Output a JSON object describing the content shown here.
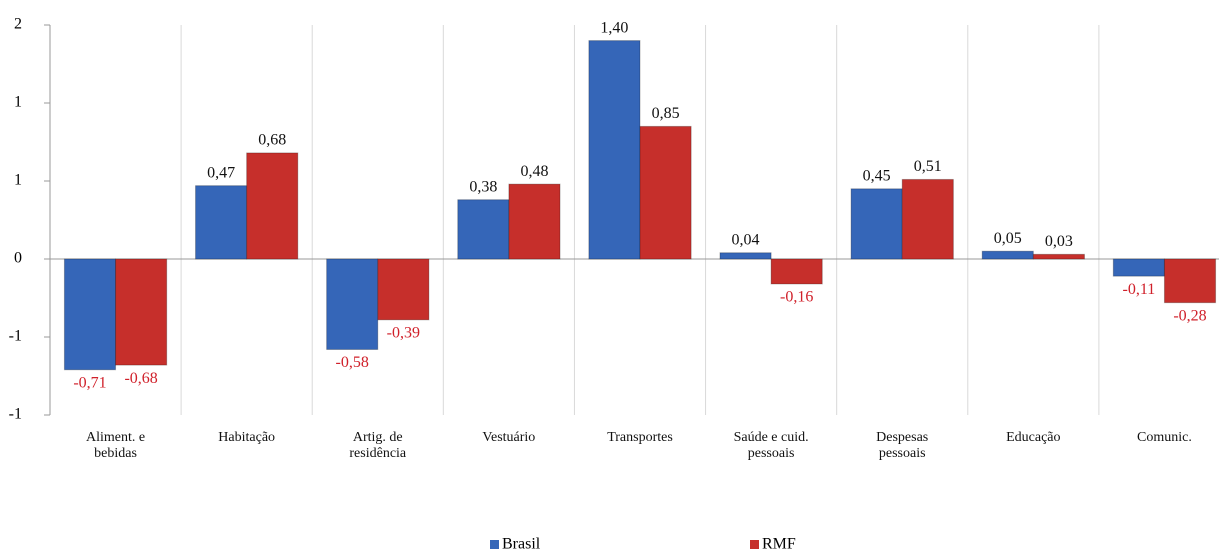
{
  "chart_data": {
    "type": "bar",
    "categories": [
      "Aliment. e bebidas",
      "Habitação",
      "Artig. de residência",
      "Vestuário",
      "Transportes",
      "Saúde e cuid. pessoais",
      "Despesas pessoais",
      "Educação",
      "Comunic."
    ],
    "series": [
      {
        "name": "Brasil",
        "color": "#3566b8",
        "values": [
          -0.71,
          0.47,
          -0.58,
          0.38,
          1.4,
          0.04,
          0.45,
          0.05,
          -0.11
        ],
        "value_labels": [
          "-0,71",
          "0,47",
          "-0,58",
          "0,38",
          "1,40",
          "0,04",
          "0,45",
          "0,05",
          "-0,11"
        ]
      },
      {
        "name": "RMF",
        "color": "#c62f2b",
        "values": [
          -0.68,
          0.68,
          -0.39,
          0.48,
          0.85,
          -0.16,
          0.51,
          0.03,
          -0.28
        ],
        "value_labels": [
          "-0,68",
          "0,68",
          "-0,39",
          "0,48",
          "0,85",
          "-0,16",
          "0,51",
          "0,03",
          "-0,28"
        ]
      }
    ],
    "ylim": [
      -1,
      1.5
    ],
    "yticks": [
      -1,
      {
        "value": -0.5,
        "label": "-1"
      },
      0,
      {
        "value": 0.5,
        "label": "1"
      },
      1,
      {
        "value": 1.5,
        "label": "2"
      }
    ],
    "grid": true,
    "legend": "bottom"
  }
}
